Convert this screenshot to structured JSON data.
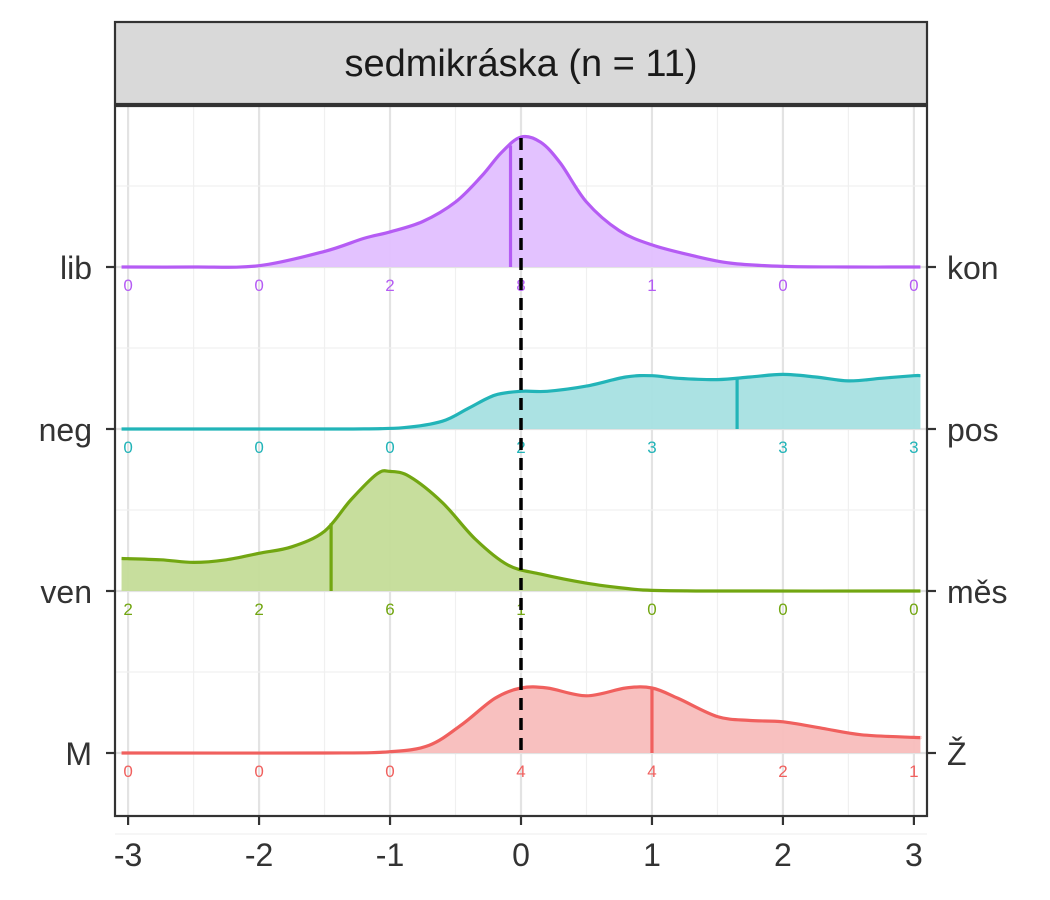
{
  "chart_data": {
    "type": "ridgeline-density",
    "title": "sedmikráska (n = 11)",
    "x_ticks": [
      "-3",
      "-2",
      "-1",
      "0",
      "1",
      "2",
      "3"
    ],
    "xlim": [
      -3.1,
      3.1
    ],
    "reference_line_x": 0,
    "grid": true,
    "rows": [
      {
        "left_label": "lib",
        "right_label": "kon",
        "color": "#B55CF4",
        "fill": "#E2BFFF",
        "median": -0.08,
        "counts": [
          "0",
          "0",
          "2",
          "8",
          "1",
          "0",
          "0"
        ],
        "density": [
          [
            -3.05,
            0
          ],
          [
            -2.5,
            0
          ],
          [
            -2.0,
            0.01
          ],
          [
            -1.5,
            0.12
          ],
          [
            -1.2,
            0.22
          ],
          [
            -1.0,
            0.27
          ],
          [
            -0.75,
            0.35
          ],
          [
            -0.5,
            0.5
          ],
          [
            -0.3,
            0.7
          ],
          [
            -0.15,
            0.88
          ],
          [
            0,
            1.0
          ],
          [
            0.15,
            0.96
          ],
          [
            0.3,
            0.8
          ],
          [
            0.5,
            0.5
          ],
          [
            0.75,
            0.28
          ],
          [
            1.0,
            0.17
          ],
          [
            1.3,
            0.09
          ],
          [
            1.6,
            0.03
          ],
          [
            2.0,
            0.005
          ],
          [
            2.5,
            0
          ],
          [
            3.05,
            0
          ]
        ]
      },
      {
        "left_label": "neg",
        "right_label": "pos",
        "color": "#22B4B8",
        "fill": "#A6E0E1",
        "median": 1.65,
        "counts": [
          "0",
          "0",
          "0",
          "2",
          "3",
          "3",
          "3"
        ],
        "density": [
          [
            -3.05,
            0
          ],
          [
            -2.0,
            0
          ],
          [
            -1.3,
            0
          ],
          [
            -0.9,
            0.01
          ],
          [
            -0.6,
            0.06
          ],
          [
            -0.4,
            0.16
          ],
          [
            -0.2,
            0.26
          ],
          [
            0,
            0.29
          ],
          [
            0.2,
            0.29
          ],
          [
            0.5,
            0.33
          ],
          [
            0.8,
            0.4
          ],
          [
            1.0,
            0.41
          ],
          [
            1.2,
            0.39
          ],
          [
            1.5,
            0.38
          ],
          [
            1.75,
            0.4
          ],
          [
            2.0,
            0.42
          ],
          [
            2.25,
            0.4
          ],
          [
            2.5,
            0.37
          ],
          [
            2.75,
            0.39
          ],
          [
            3.0,
            0.41
          ],
          [
            3.05,
            0.41
          ]
        ]
      },
      {
        "left_label": "ven",
        "right_label": "měs",
        "color": "#72A611",
        "fill": "#C4DC98",
        "median": -1.45,
        "counts": [
          "2",
          "2",
          "6",
          "1",
          "0",
          "0",
          "0"
        ],
        "density": [
          [
            -3.05,
            0.25
          ],
          [
            -2.75,
            0.24
          ],
          [
            -2.5,
            0.22
          ],
          [
            -2.25,
            0.24
          ],
          [
            -2.0,
            0.29
          ],
          [
            -1.75,
            0.34
          ],
          [
            -1.5,
            0.46
          ],
          [
            -1.3,
            0.7
          ],
          [
            -1.1,
            0.9
          ],
          [
            -1.0,
            0.92
          ],
          [
            -0.85,
            0.88
          ],
          [
            -0.6,
            0.68
          ],
          [
            -0.35,
            0.4
          ],
          [
            -0.1,
            0.2
          ],
          [
            0.15,
            0.13
          ],
          [
            0.5,
            0.06
          ],
          [
            0.8,
            0.02
          ],
          [
            1.0,
            0.005
          ],
          [
            1.5,
            0
          ],
          [
            3.05,
            0
          ]
        ]
      },
      {
        "left_label": "M",
        "right_label": "Ž",
        "color": "#F0605E",
        "fill": "#F8BDBC",
        "median": 1.0,
        "counts": [
          "0",
          "0",
          "0",
          "4",
          "4",
          "2",
          "1"
        ],
        "density": [
          [
            -3.05,
            0
          ],
          [
            -1.5,
            0
          ],
          [
            -1.0,
            0.01
          ],
          [
            -0.7,
            0.06
          ],
          [
            -0.45,
            0.22
          ],
          [
            -0.2,
            0.42
          ],
          [
            0,
            0.5
          ],
          [
            0.2,
            0.5
          ],
          [
            0.5,
            0.44
          ],
          [
            0.8,
            0.5
          ],
          [
            1.0,
            0.5
          ],
          [
            1.2,
            0.42
          ],
          [
            1.5,
            0.28
          ],
          [
            1.75,
            0.25
          ],
          [
            2.0,
            0.24
          ],
          [
            2.3,
            0.19
          ],
          [
            2.6,
            0.14
          ],
          [
            3.0,
            0.12
          ],
          [
            3.05,
            0.12
          ]
        ]
      }
    ]
  }
}
